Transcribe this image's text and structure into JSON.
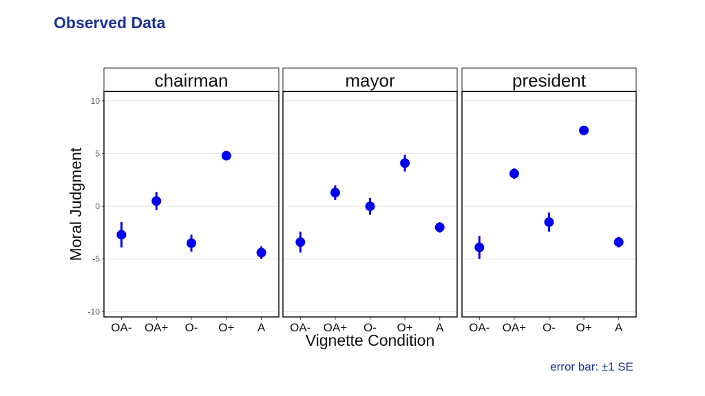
{
  "slide": {
    "title": "Observed Data",
    "footnote": "error bar: ±1 SE"
  },
  "chart_data": {
    "type": "scatter",
    "subtype": "point-with-error-bars",
    "facets": [
      "chairman",
      "mayor",
      "president"
    ],
    "categories": [
      "OA-",
      "OA+",
      "O-",
      "O+",
      "A"
    ],
    "xlabel": "Vignette Condition",
    "ylabel": "Moral Judgment",
    "ylim": [
      -10.5,
      10.9
    ],
    "yticks": [
      -10,
      -5,
      0,
      5,
      10
    ],
    "grid": true,
    "legend": "none",
    "point_color": "#0000ee",
    "series": [
      {
        "facet": "chairman",
        "values": [
          -2.7,
          0.5,
          -3.5,
          4.8,
          -4.4
        ],
        "errors": [
          1.2,
          0.85,
          0.8,
          0.25,
          0.6
        ]
      },
      {
        "facet": "mayor",
        "values": [
          -3.4,
          1.3,
          0.0,
          4.1,
          -2.0
        ],
        "errors": [
          1.0,
          0.7,
          0.8,
          0.8,
          0.5
        ]
      },
      {
        "facet": "president",
        "values": [
          -3.9,
          3.1,
          -1.5,
          7.2,
          -3.4
        ],
        "errors": [
          1.1,
          0.5,
          0.9,
          0.35,
          0.5
        ]
      }
    ]
  }
}
